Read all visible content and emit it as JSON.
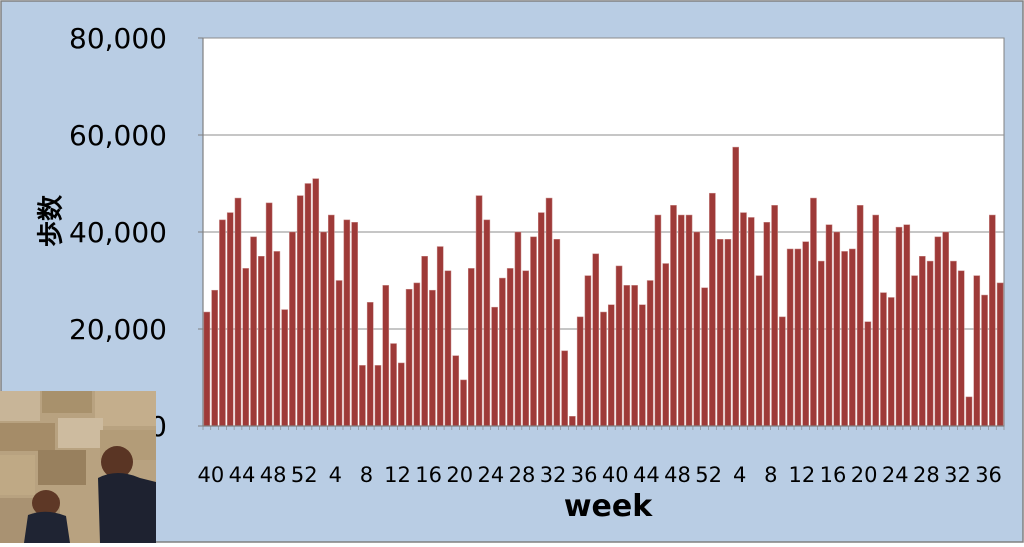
{
  "colors": {
    "frame_bg": "#b9cde4",
    "plot_bg": "#ffffff",
    "bar": "#9e3a38",
    "bar_edge": "#c98a88",
    "gridline": "#8c8c8c",
    "axis": "#808080",
    "text": "#000000"
  },
  "photo": {
    "icon": "walking-shoes-photo"
  },
  "chart_data": {
    "type": "bar",
    "xlabel": "week",
    "ylabel": "歩数",
    "ylim": [
      0,
      80000
    ],
    "y_ticks": [
      0,
      20000,
      40000,
      60000,
      80000
    ],
    "y_tick_labels": [
      "0",
      "20,000",
      "40,000",
      "60,000",
      "80,000"
    ],
    "grid": true,
    "legend": "none",
    "x_tick_labels": [
      "40",
      "44",
      "48",
      "52",
      "4",
      "8",
      "12",
      "16",
      "20",
      "24",
      "28",
      "32",
      "36",
      "40",
      "44",
      "48",
      "52",
      "4",
      "8",
      "12",
      "16",
      "20",
      "24",
      "28",
      "32",
      "36"
    ],
    "x_tick_label_every": 4,
    "values": [
      23500,
      28000,
      42500,
      44000,
      47000,
      32500,
      39000,
      35000,
      46000,
      36000,
      24000,
      40000,
      47500,
      50000,
      51000,
      40000,
      43500,
      30000,
      42500,
      42000,
      12500,
      25500,
      12500,
      29000,
      17000,
      13000,
      28200,
      29500,
      35000,
      28000,
      37000,
      32000,
      14500,
      9500,
      32500,
      47500,
      42500,
      24500,
      30500,
      32500,
      40000,
      32000,
      39000,
      44000,
      47000,
      38500,
      15500,
      2000,
      22500,
      31000,
      35500,
      23500,
      25000,
      33000,
      29000,
      29000,
      25000,
      30000,
      43500,
      33500,
      45500,
      43500,
      43500,
      40000,
      28500,
      48000,
      38500,
      38500,
      57500,
      44000,
      43000,
      31000,
      42000,
      45500,
      22500,
      36500,
      36500,
      38000,
      47000,
      34000,
      41500,
      40000,
      36000,
      36500,
      45500,
      21500,
      43500,
      27500,
      26500,
      41000,
      41500,
      31000,
      35000,
      34000,
      39000,
      40000,
      34000,
      32000,
      6000,
      31000,
      27000,
      43500,
      29500
    ]
  }
}
